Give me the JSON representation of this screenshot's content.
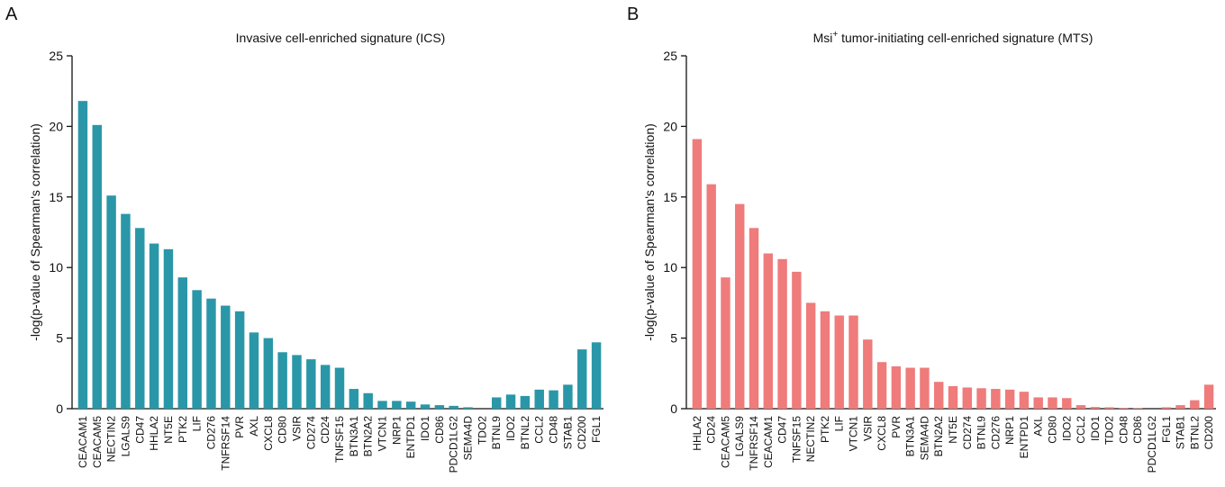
{
  "panels": [
    "A",
    "B"
  ],
  "chart_data": [
    {
      "type": "bar",
      "title": "Invasive cell-enriched signature (ICS)",
      "ylabel": "-log(p-value of Spearman's correlation)",
      "xlabel": "",
      "ylim": [
        0,
        25
      ],
      "yticks": [
        0,
        5,
        10,
        15,
        20,
        25
      ],
      "color": "#2a97a8",
      "categories": [
        "CEACAM1",
        "CEACAM5",
        "NECTIN2",
        "LGALS9",
        "CD47",
        "HHLA2",
        "NT5E",
        "PTK2",
        "LIF",
        "CD276",
        "TNFRSF14",
        "PVR",
        "AXL",
        "CXCL8",
        "CD80",
        "VSIR",
        "CD274",
        "CD24",
        "TNFSF15",
        "BTN3A1",
        "BTN2A2",
        "VTCN1",
        "NRP1",
        "ENTPD1",
        "IDO1",
        "CD86",
        "PDCD1LG2",
        "SEMA4D",
        "TDO2",
        "BTNL9",
        "IDO2",
        "BTNL2",
        "CCL2",
        "CD48",
        "STAB1",
        "CD200",
        "FGL1"
      ],
      "values": [
        21.8,
        20.1,
        15.1,
        13.8,
        12.8,
        11.7,
        11.3,
        9.3,
        8.4,
        7.8,
        7.3,
        6.9,
        5.4,
        5.0,
        4.0,
        3.8,
        3.5,
        3.1,
        2.9,
        1.4,
        1.1,
        0.55,
        0.55,
        0.5,
        0.3,
        0.25,
        0.2,
        0.1,
        0.0,
        0.8,
        1.0,
        0.9,
        1.35,
        1.3,
        1.7,
        4.2,
        4.7
      ]
    },
    {
      "type": "bar",
      "title_main": "Msi",
      "title_sup": "+",
      "title_rest": " tumor-initiating cell-enriched signature (MTS)",
      "ylabel": "-log(p-value of Spearman's correlation)",
      "xlabel": "",
      "ylim": [
        0,
        25
      ],
      "yticks": [
        0,
        5,
        10,
        15,
        20,
        25
      ],
      "color": "#ef7b7b",
      "categories": [
        "HHLA2",
        "CD24",
        "CEACAM5",
        "LGALS9",
        "TNFRSF14",
        "CEACAM1",
        "CD47",
        "TNFSF15",
        "NECTIN2",
        "PTK2",
        "LIF",
        "VTCN1",
        "VSIR",
        "CXCL8",
        "PVR",
        "BTN3A1",
        "SEMA4D",
        "BTN2A2",
        "NT5E",
        "CD274",
        "BTNL9",
        "CD276",
        "NRP1",
        "ENTPD1",
        "AXL",
        "CD80",
        "IDO2",
        "CCL2",
        "IDO1",
        "TDO2",
        "CD48",
        "CD86",
        "PDCD1LG2",
        "FGL1",
        "STAB1",
        "BTNL2",
        "CD200"
      ],
      "values": [
        19.1,
        15.9,
        9.3,
        14.5,
        12.8,
        11.0,
        10.6,
        9.7,
        7.5,
        6.9,
        6.6,
        6.6,
        4.9,
        3.3,
        3.0,
        2.9,
        2.9,
        1.9,
        1.6,
        1.5,
        1.45,
        1.4,
        1.35,
        1.2,
        0.8,
        0.8,
        0.75,
        0.25,
        0.12,
        0.1,
        0.05,
        0.03,
        0.0,
        0.1,
        0.25,
        0.6,
        1.7
      ]
    }
  ]
}
